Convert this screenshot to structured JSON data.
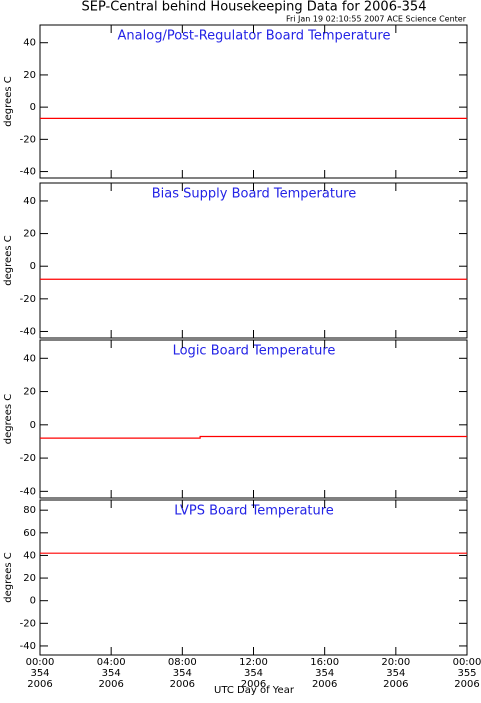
{
  "header": {
    "title": "SEP-Central behind Housekeeping Data for 2006-354",
    "subtitle": "Fri Jan 19 02:10:55 2007 ACE Science Center"
  },
  "x_axis": {
    "label": "UTC Day of Year",
    "xlim": [
      0,
      24
    ],
    "xticks": [
      {
        "value": 0,
        "label": [
          "00:00",
          "354",
          "2006"
        ]
      },
      {
        "value": 4,
        "label": [
          "04:00",
          "354",
          "2006"
        ]
      },
      {
        "value": 8,
        "label": [
          "08:00",
          "354",
          "2006"
        ]
      },
      {
        "value": 12,
        "label": [
          "12:00",
          "354",
          "2006"
        ]
      },
      {
        "value": 16,
        "label": [
          "16:00",
          "354",
          "2006"
        ]
      },
      {
        "value": 20,
        "label": [
          "20:00",
          "354",
          "2006"
        ]
      },
      {
        "value": 24,
        "label": [
          "00:00",
          "355",
          "2006"
        ]
      }
    ]
  },
  "chart_data": [
    {
      "type": "line",
      "title": "Analog/Post-Regulator Board Temperature",
      "ylabel": "degrees C",
      "ylim": [
        -44,
        51
      ],
      "yticks": [
        -40,
        -20,
        0,
        20,
        40
      ],
      "x": [
        0,
        24
      ],
      "series": [
        {
          "color": "#ff0000",
          "values": [
            -7,
            -7
          ]
        }
      ]
    },
    {
      "type": "line",
      "title": "Bias Supply Board Temperature",
      "ylabel": "degrees C",
      "ylim": [
        -44,
        51
      ],
      "yticks": [
        -40,
        -20,
        0,
        20,
        40
      ],
      "x": [
        0,
        24
      ],
      "series": [
        {
          "color": "#ff0000",
          "values": [
            -8,
            -8
          ]
        }
      ]
    },
    {
      "type": "line",
      "title": "Logic Board Temperature",
      "ylabel": "degrees C",
      "ylim": [
        -44,
        51
      ],
      "yticks": [
        -40,
        -20,
        0,
        20,
        40
      ],
      "x": [
        0,
        9,
        9,
        14,
        14,
        24
      ],
      "series": [
        {
          "color": "#ff0000",
          "values": [
            -8,
            -8,
            -7,
            -7,
            -7,
            -7
          ]
        }
      ]
    },
    {
      "type": "line",
      "title": "LVPS Board Temperature",
      "ylabel": "degrees C",
      "ylim": [
        -48,
        89
      ],
      "yticks": [
        -40,
        -20,
        0,
        20,
        40,
        60,
        80
      ],
      "x": [
        0,
        24
      ],
      "series": [
        {
          "color": "#ff0000",
          "values": [
            42,
            42
          ]
        }
      ]
    }
  ]
}
